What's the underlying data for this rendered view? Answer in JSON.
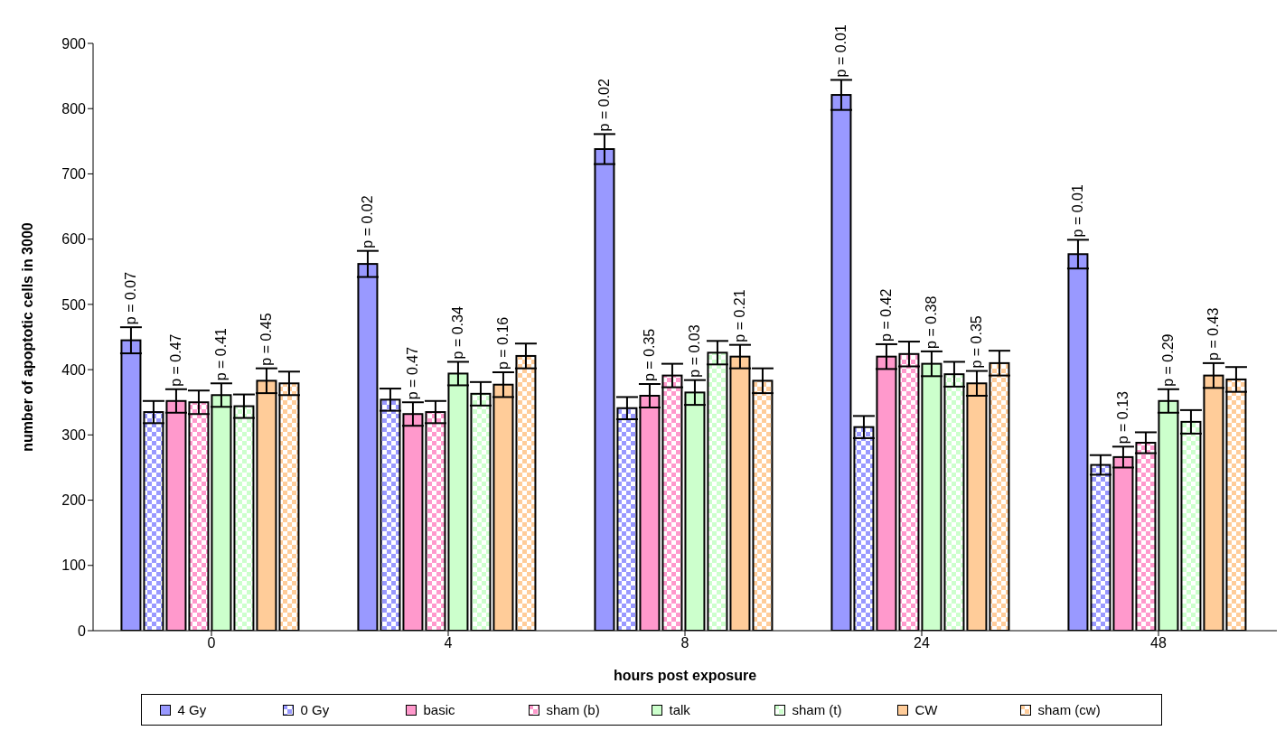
{
  "chart_data": {
    "type": "bar",
    "xlabel": "hours post exposure",
    "ylabel": "number of apoptotic cells in 3000",
    "categories": [
      "0",
      "4",
      "8",
      "24",
      "48"
    ],
    "ylim": [
      0,
      900
    ],
    "yticks": [
      0,
      100,
      200,
      300,
      400,
      500,
      600,
      700,
      800,
      900
    ],
    "grid": false,
    "legend": "bottom",
    "series": [
      {
        "name": "4 Gy",
        "color": "#9999ff",
        "values": [
          445,
          562,
          738,
          821,
          577
        ],
        "errors": [
          20,
          20,
          23,
          23,
          22
        ]
      },
      {
        "name": "0 Gy",
        "color": "#9999ff",
        "values": [
          335,
          354,
          341,
          312,
          254
        ],
        "errors": [
          17,
          17,
          17,
          17,
          15
        ]
      },
      {
        "name": "basic",
        "color": "#ff99cc",
        "values": [
          352,
          332,
          360,
          420,
          266
        ],
        "errors": [
          18,
          18,
          18,
          19,
          16
        ]
      },
      {
        "name": "sham (b)",
        "color": "#ff99cc",
        "values": [
          350,
          335,
          391,
          424,
          288
        ],
        "errors": [
          18,
          17,
          18,
          19,
          16
        ]
      },
      {
        "name": "talk",
        "color": "#ccffcc",
        "values": [
          361,
          394,
          365,
          409,
          352
        ],
        "errors": [
          18,
          18,
          19,
          19,
          18
        ]
      },
      {
        "name": "sham (t)",
        "color": "#ccffcc",
        "values": [
          344,
          363,
          426,
          393,
          320
        ],
        "errors": [
          18,
          18,
          18,
          19,
          18
        ]
      },
      {
        "name": "CW",
        "color": "#ffcc99",
        "values": [
          383,
          377,
          420,
          379,
          391
        ],
        "errors": [
          19,
          19,
          18,
          19,
          19
        ]
      },
      {
        "name": "sham (cw)",
        "color": "#ffcc99",
        "values": [
          379,
          421,
          383,
          410,
          385
        ],
        "errors": [
          18,
          19,
          19,
          19,
          19
        ]
      }
    ],
    "annotations": [
      "p = 0.07",
      "p = 0.47",
      "p = 0.41",
      "p = 0.45",
      "p = 0.02",
      "p = 0.47",
      "p = 0.34",
      "p = 0.16",
      "p = 0.02",
      "p = 0.35",
      "p = 0.03",
      "p = 0.21",
      "p = 0.01",
      "p = 0.42",
      "p = 0.38",
      "p = 0.35",
      "p = 0.01",
      "p = 0.13",
      "p = 0.29",
      "p = 0.43"
    ]
  }
}
